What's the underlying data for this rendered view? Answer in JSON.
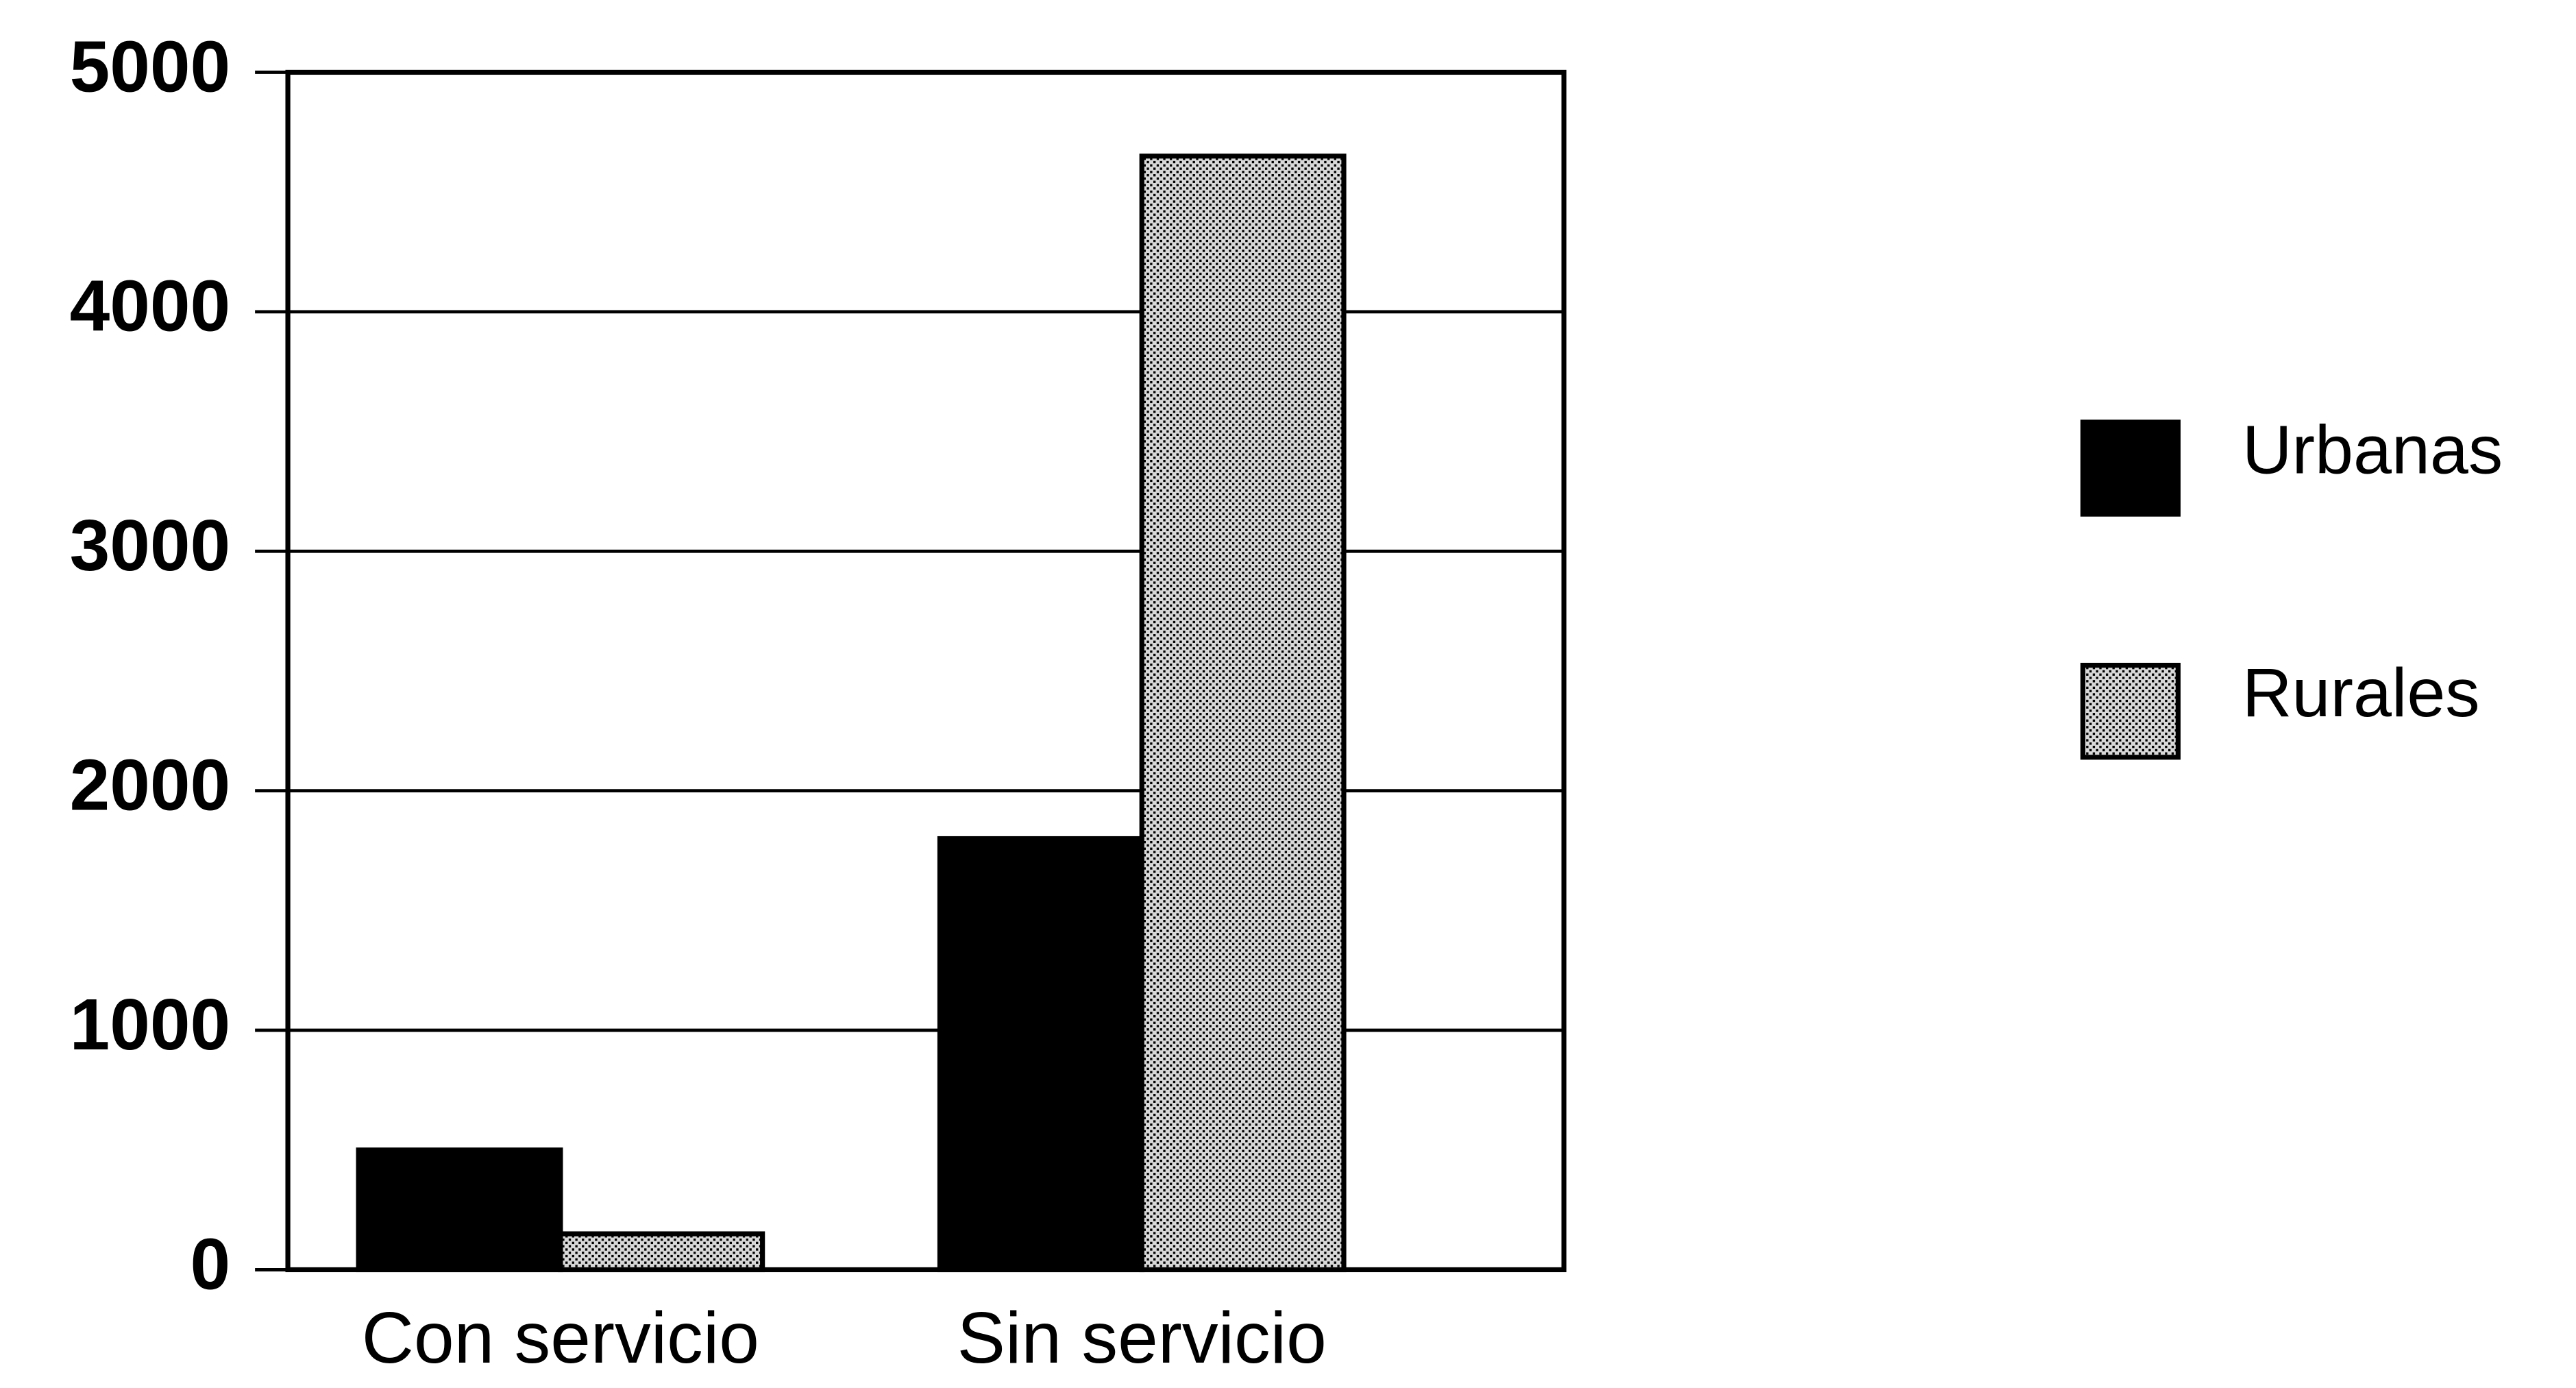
{
  "chart_data": {
    "type": "bar",
    "categories": [
      "Con servicio",
      "Sin servicio"
    ],
    "series": [
      {
        "name": "Urbanas",
        "color": "#000000",
        "values": [
          500,
          1800
        ]
      },
      {
        "name": "Rurales",
        "color": "#d8d8d8",
        "values": [
          150,
          4650
        ]
      }
    ],
    "ylim": [
      0,
      5000
    ],
    "yticks": [
      0,
      1000,
      2000,
      3000,
      4000,
      5000
    ],
    "grid": true,
    "legend": "right"
  }
}
